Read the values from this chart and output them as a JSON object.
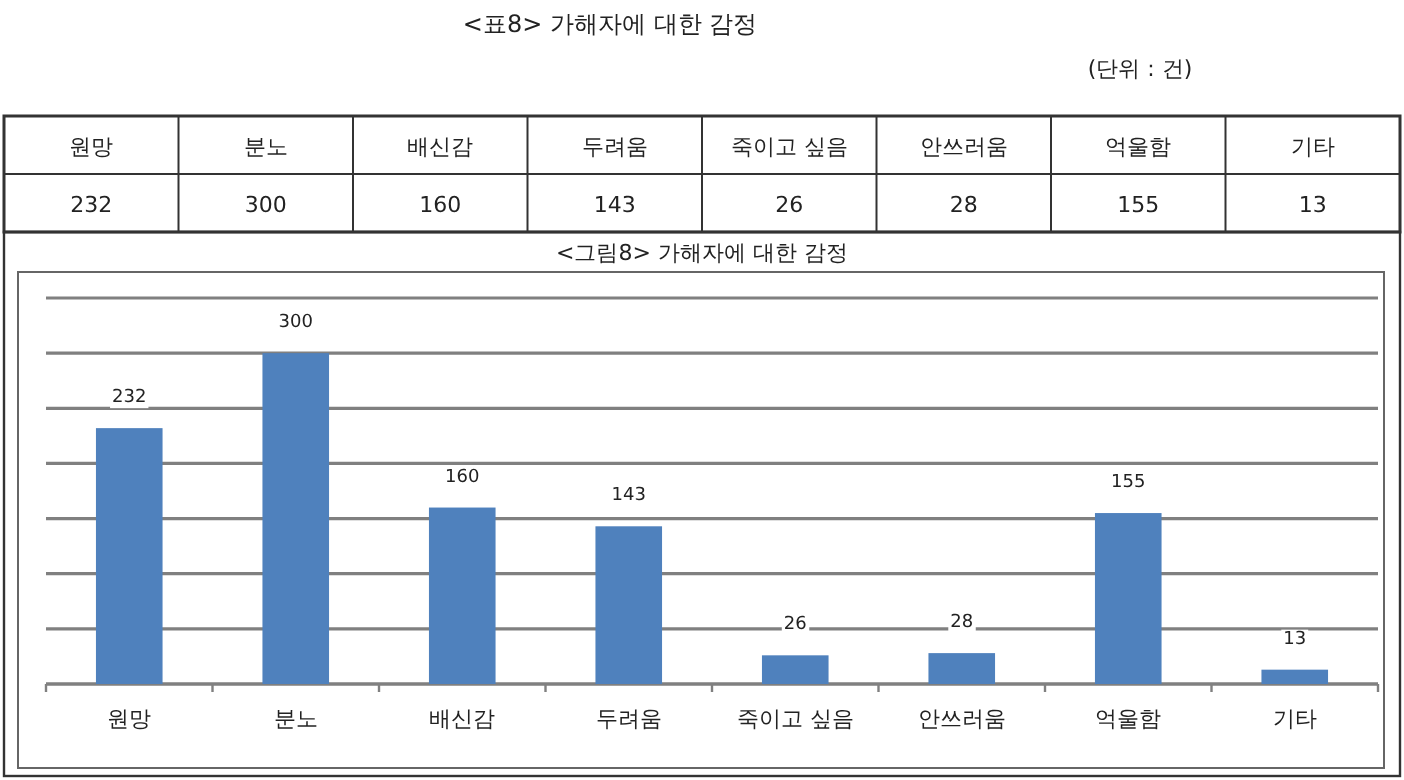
{
  "chart_data": [
    {
      "type": "other",
      "title": "<표8> 가해자에 대한 감정",
      "annotations": [
        "(단위 : 건)",
        "232",
        "300",
        "160",
        "143",
        "26",
        "28",
        "155",
        "13"
      ],
      "categories": [
        "원망",
        "분노",
        "배신감",
        "두려움",
        "죽이고 싶음",
        "안쓰러움",
        "억울함",
        "기타"
      ]
    },
    {
      "type": "bar",
      "title": "<그림8> 가해자에 대한 감정",
      "categories": [
        "원망",
        "분노",
        "배신감",
        "두려움",
        "죽이고 싶음",
        "안쓰러움",
        "억울함",
        "기타"
      ],
      "values": [
        232,
        300,
        160,
        143,
        26,
        28,
        155,
        13
      ],
      "color": "#4f81bd",
      "ylim": [
        0,
        350
      ],
      "yticks": [
        {
          "value": 0,
          "label": null
        },
        {
          "value": 50,
          "label": null
        },
        {
          "value": 100,
          "label": null
        },
        {
          "value": 150,
          "label": null
        },
        {
          "value": 200,
          "label": null
        },
        {
          "value": 250,
          "label": null
        },
        {
          "value": 300,
          "label": null
        },
        {
          "value": 350,
          "label": null
        }
      ],
      "tick_labels": "x",
      "grid": "y",
      "data_labels": true,
      "legend": false
    }
  ]
}
